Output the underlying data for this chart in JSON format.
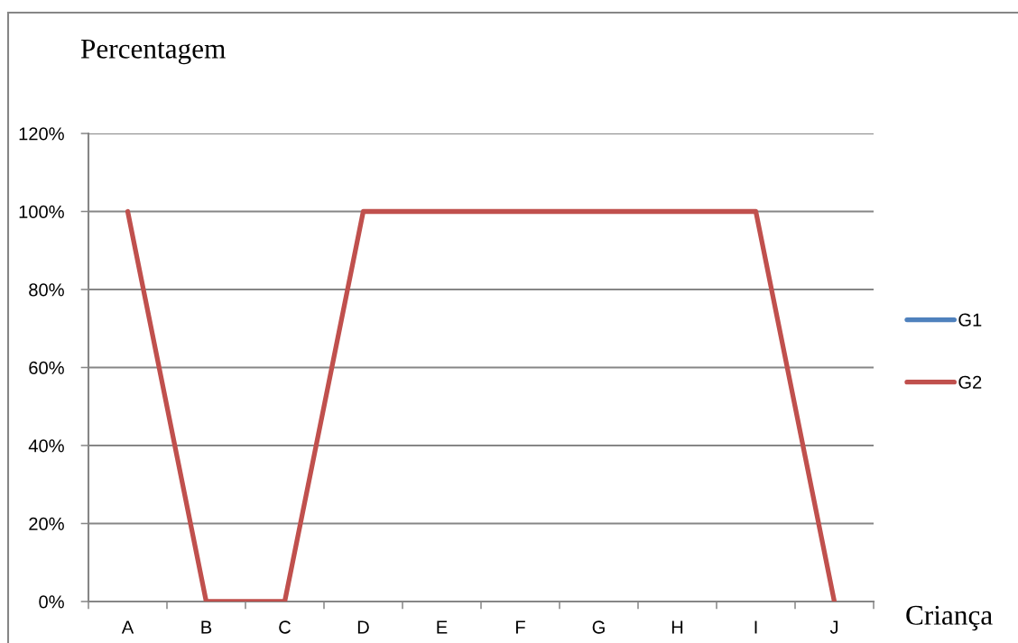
{
  "chart_data": {
    "type": "line",
    "ylabel": "Percentagem",
    "xlabel": "Criança",
    "categories": [
      "A",
      "B",
      "C",
      "D",
      "E",
      "F",
      "G",
      "H",
      "I",
      "J"
    ],
    "series": [
      {
        "name": "G1",
        "color": "#4f81bd",
        "values": [
          null,
          null,
          null,
          null,
          null,
          null,
          null,
          null,
          null,
          null
        ]
      },
      {
        "name": "G2",
        "color": "#c0504d",
        "values": [
          100,
          0,
          0,
          100,
          100,
          100,
          100,
          100,
          100,
          0
        ]
      }
    ],
    "ylim": [
      0,
      120
    ],
    "yticks": [
      {
        "value": 0,
        "label": "0%"
      },
      {
        "value": 20,
        "label": "20%"
      },
      {
        "value": 40,
        "label": "40%"
      },
      {
        "value": 60,
        "label": "60%"
      },
      {
        "value": 80,
        "label": "80%"
      },
      {
        "value": 100,
        "label": "100%"
      },
      {
        "value": 120,
        "label": "120%"
      }
    ],
    "grid": "y",
    "legend": "right",
    "line_style": "solid"
  }
}
